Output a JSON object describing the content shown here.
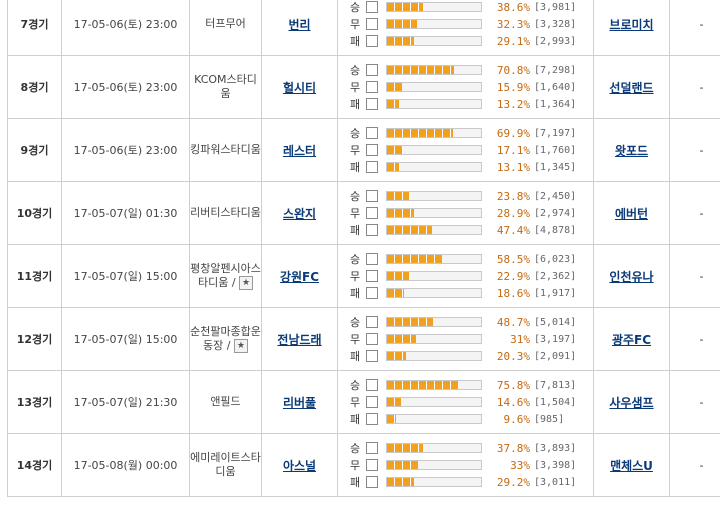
{
  "matches": [
    {
      "round": "7경기",
      "time": "17-05-06(토) 23:00",
      "stadium": "터프무어",
      "stadium_star": "",
      "home": "번리",
      "away": "브로미치",
      "extra": "-",
      "odds": [
        {
          "label": "승",
          "pct": "38.6%",
          "count": "[3,981]",
          "fill": 38.6
        },
        {
          "label": "무",
          "pct": "32.3%",
          "count": "[3,328]",
          "fill": 32.3
        },
        {
          "label": "패",
          "pct": "29.1%",
          "count": "[2,993]",
          "fill": 29.1
        }
      ]
    },
    {
      "round": "8경기",
      "time": "17-05-06(토) 23:00",
      "stadium": "KCOM스타디움",
      "stadium_star": "",
      "home": "헐시티",
      "away": "선덜랜드",
      "extra": "-",
      "odds": [
        {
          "label": "승",
          "pct": "70.8%",
          "count": "[7,298]",
          "fill": 70.8
        },
        {
          "label": "무",
          "pct": "15.9%",
          "count": "[1,640]",
          "fill": 15.9
        },
        {
          "label": "패",
          "pct": "13.2%",
          "count": "[1,364]",
          "fill": 13.2
        }
      ]
    },
    {
      "round": "9경기",
      "time": "17-05-06(토) 23:00",
      "stadium": "킹파워스타디움",
      "stadium_star": "",
      "home": "레스터",
      "away": "왓포드",
      "extra": "-",
      "odds": [
        {
          "label": "승",
          "pct": "69.9%",
          "count": "[7,197]",
          "fill": 69.9
        },
        {
          "label": "무",
          "pct": "17.1%",
          "count": "[1,760]",
          "fill": 17.1
        },
        {
          "label": "패",
          "pct": "13.1%",
          "count": "[1,345]",
          "fill": 13.1
        }
      ]
    },
    {
      "round": "10경기",
      "time": "17-05-07(일) 01:30",
      "stadium": "리버티스타디움",
      "stadium_star": "",
      "home": "스완지",
      "away": "에버턴",
      "extra": "-",
      "odds": [
        {
          "label": "승",
          "pct": "23.8%",
          "count": "[2,450]",
          "fill": 23.8
        },
        {
          "label": "무",
          "pct": "28.9%",
          "count": "[2,974]",
          "fill": 28.9
        },
        {
          "label": "패",
          "pct": "47.4%",
          "count": "[4,878]",
          "fill": 47.4
        }
      ]
    },
    {
      "round": "11경기",
      "time": "17-05-07(일) 15:00",
      "stadium": "평창알펜시아스타디움 /",
      "stadium_star": "★",
      "home": "강원FC",
      "away": "인천유나",
      "extra": "-",
      "odds": [
        {
          "label": "승",
          "pct": "58.5%",
          "count": "[6,023]",
          "fill": 58.5
        },
        {
          "label": "무",
          "pct": "22.9%",
          "count": "[2,362]",
          "fill": 22.9
        },
        {
          "label": "패",
          "pct": "18.6%",
          "count": "[1,917]",
          "fill": 18.6
        }
      ]
    },
    {
      "round": "12경기",
      "time": "17-05-07(일) 15:00",
      "stadium": "순천팔마종합운동장 /",
      "stadium_star": "★",
      "home": "전남드래",
      "away": "광주FC",
      "extra": "-",
      "odds": [
        {
          "label": "승",
          "pct": "48.7%",
          "count": "[5,014]",
          "fill": 48.7
        },
        {
          "label": "무",
          "pct": "31%",
          "count": "[3,197]",
          "fill": 31.0
        },
        {
          "label": "패",
          "pct": "20.3%",
          "count": "[2,091]",
          "fill": 20.3
        }
      ]
    },
    {
      "round": "13경기",
      "time": "17-05-07(일) 21:30",
      "stadium": "앤필드",
      "stadium_star": "",
      "home": "리버풀",
      "away": "사우샘프",
      "extra": "-",
      "odds": [
        {
          "label": "승",
          "pct": "75.8%",
          "count": "[7,813]",
          "fill": 75.8
        },
        {
          "label": "무",
          "pct": "14.6%",
          "count": "[1,504]",
          "fill": 14.6
        },
        {
          "label": "패",
          "pct": "9.6%",
          "count": "[985]",
          "fill": 9.6
        }
      ]
    },
    {
      "round": "14경기",
      "time": "17-05-08(월) 00:00",
      "stadium": "에미레이트스타디움",
      "stadium_star": "",
      "home": "아스널",
      "away": "맨체스U",
      "extra": "-",
      "odds": [
        {
          "label": "승",
          "pct": "37.8%",
          "count": "[3,893]",
          "fill": 37.8
        },
        {
          "label": "무",
          "pct": "33%",
          "count": "[3,398]",
          "fill": 33.0
        },
        {
          "label": "패",
          "pct": "29.2%",
          "count": "[3,011]",
          "fill": 29.2
        }
      ]
    }
  ]
}
